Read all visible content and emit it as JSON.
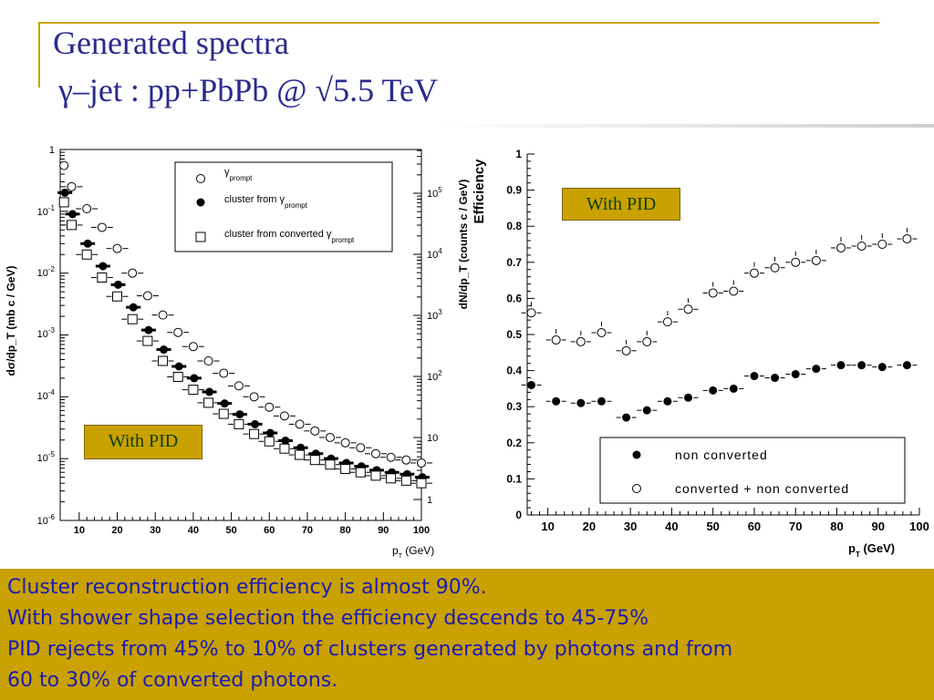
{
  "slide": {
    "title_line1": "Generated spectra",
    "title_line2": "γ–jet : pp+PbPb @ √5.5 TeV",
    "badge_left": "With PID",
    "badge_right": "With PID",
    "notes": [
      "Cluster reconstruction efficiency is almost 90%.",
      "With shower shape selection the efficiency descends to 45-75%",
      "PID rejects from 45% to 10% of clusters generated by photons and from",
      "60 to 30% of converted photons."
    ],
    "colors": {
      "accent": "#c9a100",
      "text_blue": "#1c1cb0",
      "title_blue": "#2a2a8c",
      "badge_text": "#0b3d0b"
    }
  },
  "chart_data": [
    {
      "type": "scatter",
      "scale": "log",
      "xlabel": "p_T (GeV)",
      "ylabel": "dσ/dp_T (mb c / GeV)",
      "ylabel_right": "dN/dp_T (counts c / GeV)",
      "xlim": [
        5,
        100
      ],
      "ylim": [
        1e-06,
        1
      ],
      "x_ticks": [
        10,
        20,
        30,
        40,
        50,
        60,
        70,
        80,
        90,
        100
      ],
      "y_ticks": [
        "1",
        "10-1",
        "10-2",
        "10-3",
        "10-4",
        "10-5",
        "10-6"
      ],
      "y_ticks_right": [
        "10 5",
        "10 4",
        "10 3",
        "10 2",
        "10",
        "1"
      ],
      "legend": {
        "position": "top-right"
      },
      "x": [
        6,
        8,
        12,
        16,
        20,
        24,
        28,
        32,
        36,
        40,
        44,
        48,
        52,
        56,
        60,
        64,
        68,
        72,
        76,
        80,
        84,
        88,
        92,
        96,
        100
      ],
      "series": [
        {
          "name": "γ prompt",
          "marker": "open-circle",
          "values": [
            0.55,
            0.25,
            0.11,
            0.055,
            0.025,
            0.01,
            0.0043,
            0.0021,
            0.0011,
            0.00065,
            0.00038,
            0.00024,
            0.00015,
            0.0001,
            6.8e-05,
            4.9e-05,
            3.6e-05,
            2.8e-05,
            2.2e-05,
            1.8e-05,
            1.5e-05,
            1.2e-05,
            1.05e-05,
            9.5e-06,
            8.5e-06
          ]
        },
        {
          "name": "cluster from γ prompt",
          "marker": "filled-circle",
          "values": [
            0.2,
            0.09,
            0.03,
            0.013,
            0.0065,
            0.0028,
            0.0012,
            0.00058,
            0.00031,
            0.0002,
            0.00012,
            7.8e-05,
            5.2e-05,
            3.6e-05,
            2.6e-05,
            1.95e-05,
            1.5e-05,
            1.2e-05,
            1e-05,
            8.5e-06,
            7.5e-06,
            6.5e-06,
            6e-06,
            5.6e-06,
            5e-06
          ]
        },
        {
          "name": "cluster from converted γ prompt",
          "marker": "open-square",
          "values": [
            0.14,
            0.06,
            0.02,
            0.0085,
            0.0042,
            0.0018,
            0.0008,
            0.00038,
            0.00021,
            0.00013,
            8e-05,
            5.3e-05,
            3.6e-05,
            2.5e-05,
            1.9e-05,
            1.45e-05,
            1.15e-05,
            9.5e-06,
            8e-06,
            6.8e-06,
            6e-06,
            5.3e-06,
            4.8e-06,
            4.4e-06,
            4e-06
          ]
        }
      ]
    },
    {
      "type": "scatter",
      "xlabel": "p_T (GeV)",
      "ylabel": "Efficiency",
      "xlim": [
        5,
        100
      ],
      "ylim": [
        0,
        1
      ],
      "x_ticks": [
        10,
        20,
        30,
        40,
        50,
        60,
        70,
        80,
        90,
        100
      ],
      "y_ticks": [
        0,
        0.1,
        0.2,
        0.3,
        0.4,
        0.5,
        0.6,
        0.7,
        0.8,
        0.9,
        1
      ],
      "legend": {
        "position": "bottom-right"
      },
      "x": [
        6,
        12,
        18,
        23,
        29,
        34,
        39,
        44,
        50,
        55,
        60,
        65,
        70,
        75,
        81,
        86,
        91,
        97
      ],
      "series": [
        {
          "name": "non converted",
          "marker": "filled-circle",
          "values": [
            0.36,
            0.315,
            0.31,
            0.315,
            0.27,
            0.29,
            0.315,
            0.325,
            0.345,
            0.35,
            0.385,
            0.38,
            0.39,
            0.405,
            0.415,
            0.415,
            0.41,
            0.415
          ]
        },
        {
          "name": "converted + non converted",
          "marker": "open-circle",
          "values": [
            0.56,
            0.485,
            0.48,
            0.505,
            0.455,
            0.48,
            0.535,
            0.57,
            0.615,
            0.62,
            0.67,
            0.685,
            0.7,
            0.705,
            0.74,
            0.745,
            0.75,
            0.765
          ]
        }
      ]
    }
  ]
}
